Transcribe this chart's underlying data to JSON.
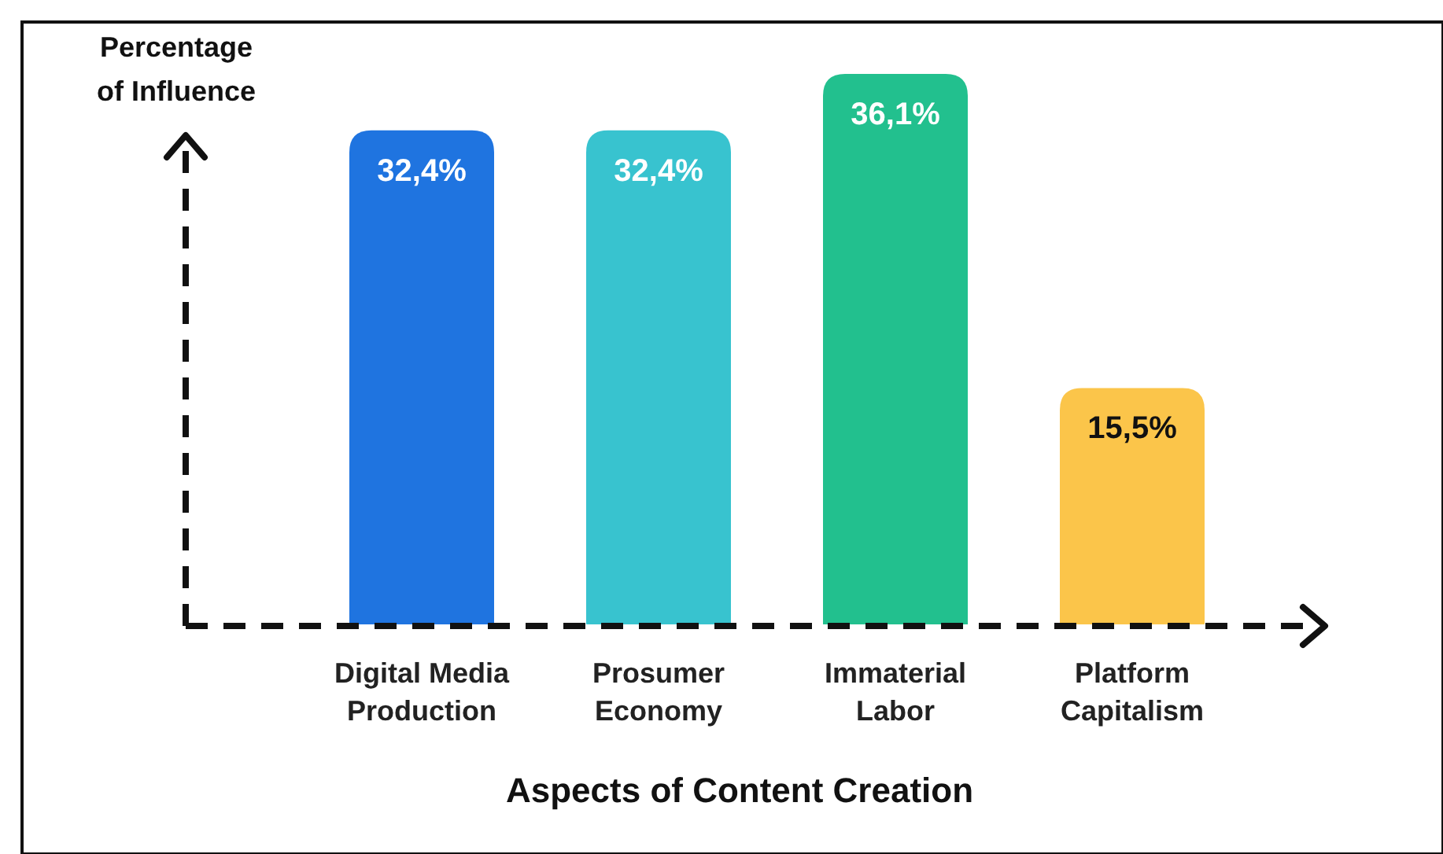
{
  "chart_data": {
    "type": "bar",
    "xlabel": "Aspects of Content Creation",
    "ylabel": "Percentage\nof Influence",
    "categories": [
      "Digital Media\nProduction",
      "Prosumer\nEconomy",
      "Immaterial\nLabor",
      "Platform\nCapitalism"
    ],
    "values": [
      32.4,
      32.4,
      36.1,
      15.5
    ],
    "colors": [
      "#1f74e0",
      "#38c3cf",
      "#22c08e",
      "#fbc54a"
    ],
    "value_labels": [
      "32,4%",
      "32,4%",
      "36,1%",
      "15,5%"
    ],
    "tick_labels": "x"
  }
}
